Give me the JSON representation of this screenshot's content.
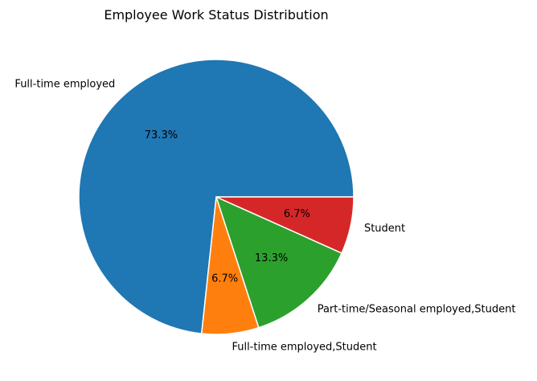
{
  "chart_data": {
    "type": "pie",
    "title": "Employee Work Status Distribution",
    "categories": [
      "Full-time employed",
      "Full-time employed,Student",
      "Part-time/Seasonal employed,Student",
      "Student"
    ],
    "values": [
      73.3,
      6.7,
      13.3,
      6.7
    ],
    "percent_labels": [
      "73.3%",
      "6.7%",
      "13.3%",
      "6.7%"
    ],
    "colors": [
      "#1f77b4",
      "#ff7f0e",
      "#2ca02c",
      "#d62728"
    ],
    "start_angle_deg": 0,
    "direction": "counterclockwise",
    "legend": "none"
  }
}
